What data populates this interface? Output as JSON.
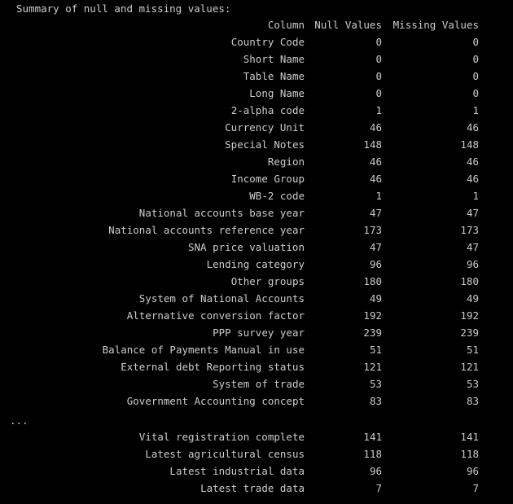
{
  "title": "Summary of null and missing values:",
  "ellipsis": "...",
  "headers": {
    "column": "Column",
    "null_values": "Null Values",
    "missing_values": "Missing Values"
  },
  "rows_top": [
    {
      "column": "Country Code",
      "null": "0",
      "missing": "0"
    },
    {
      "column": "Short Name",
      "null": "0",
      "missing": "0"
    },
    {
      "column": "Table Name",
      "null": "0",
      "missing": "0"
    },
    {
      "column": "Long Name",
      "null": "0",
      "missing": "0"
    },
    {
      "column": "2-alpha code",
      "null": "1",
      "missing": "1"
    },
    {
      "column": "Currency Unit",
      "null": "46",
      "missing": "46"
    },
    {
      "column": "Special Notes",
      "null": "148",
      "missing": "148"
    },
    {
      "column": "Region",
      "null": "46",
      "missing": "46"
    },
    {
      "column": "Income Group",
      "null": "46",
      "missing": "46"
    },
    {
      "column": "WB-2 code",
      "null": "1",
      "missing": "1"
    },
    {
      "column": "National accounts base year",
      "null": "47",
      "missing": "47"
    },
    {
      "column": "National accounts reference year",
      "null": "173",
      "missing": "173"
    },
    {
      "column": "SNA price valuation",
      "null": "47",
      "missing": "47"
    },
    {
      "column": "Lending category",
      "null": "96",
      "missing": "96"
    },
    {
      "column": "Other groups",
      "null": "180",
      "missing": "180"
    },
    {
      "column": "System of National Accounts",
      "null": "49",
      "missing": "49"
    },
    {
      "column": "Alternative conversion factor",
      "null": "192",
      "missing": "192"
    },
    {
      "column": "PPP survey year",
      "null": "239",
      "missing": "239"
    },
    {
      "column": "Balance of Payments Manual in use",
      "null": "51",
      "missing": "51"
    },
    {
      "column": "External debt Reporting status",
      "null": "121",
      "missing": "121"
    },
    {
      "column": "System of trade",
      "null": "53",
      "missing": "53"
    },
    {
      "column": "Government Accounting concept",
      "null": "83",
      "missing": "83"
    }
  ],
  "rows_bottom": [
    {
      "column": "Vital registration complete",
      "null": "141",
      "missing": "141"
    },
    {
      "column": "Latest agricultural census",
      "null": "118",
      "missing": "118"
    },
    {
      "column": "Latest industrial data",
      "null": "96",
      "missing": "96"
    },
    {
      "column": "Latest trade data",
      "null": "7",
      "missing": "7"
    }
  ]
}
